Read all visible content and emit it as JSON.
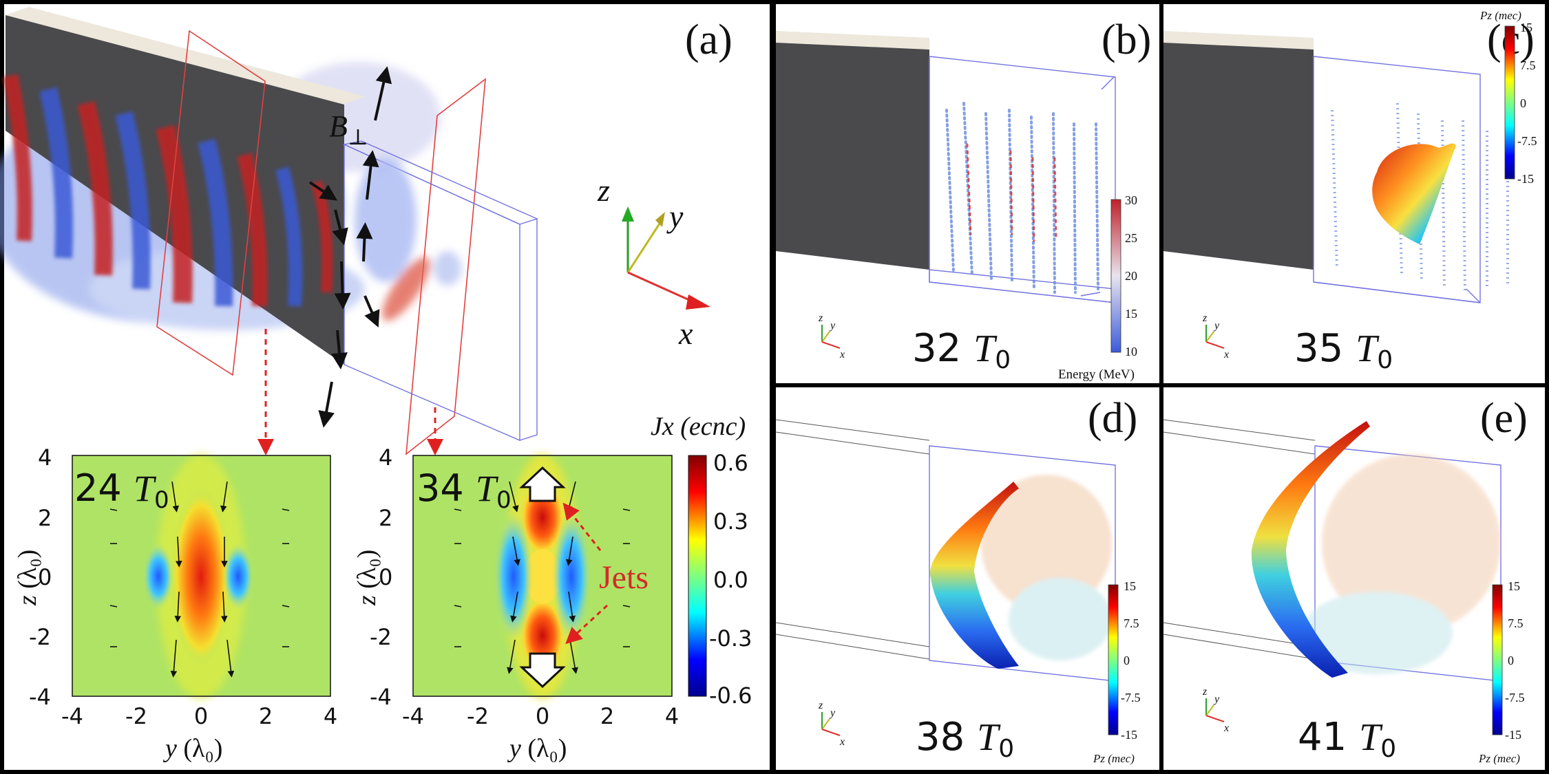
{
  "colors": {
    "red": "#cc2222",
    "blue": "#3355cc",
    "jets": "#d42a2a",
    "slab_dark": "#4a4a4d",
    "slab_top": "#ede7dc",
    "box": "#6f6fe0"
  },
  "panel_a": {
    "label": "(a)",
    "field_label": "B",
    "field_sub": "⊥",
    "axes3d": {
      "z": "z",
      "y": "y",
      "x": "x"
    },
    "maps": [
      {
        "time_value": "24",
        "time_unit": "T",
        "time_sub": "0"
      },
      {
        "time_value": "34",
        "time_unit": "T",
        "time_sub": "0"
      }
    ],
    "map_xticks": [
      "-4",
      "-2",
      "0",
      "2",
      "4"
    ],
    "map_yticks": [
      "4",
      "2",
      "0",
      "-2",
      "-4"
    ],
    "map_ylabel": "z",
    "map_ylabel_unit": "(λ₀)",
    "map_xlabel": "y",
    "map_xlabel_unit": "(λ₀)",
    "jets_label": "Jets",
    "colorbar_title": "Jx (ecnc)",
    "colorbar_ticks": [
      "0.6",
      "0.3",
      "0.0",
      "-0.3",
      "-0.6"
    ]
  },
  "panel_b": {
    "label": "(b)",
    "time_value": "32",
    "time_unit": "T",
    "time_sub": "0",
    "colorbar_ticks": [
      "30",
      "25",
      "20",
      "15",
      "10"
    ],
    "colorbar_title": "Energy (MeV)"
  },
  "panel_c": {
    "label": "(c)",
    "time_value": "35",
    "time_unit": "T",
    "time_sub": "0",
    "colorbar_title": "Pz (mec)",
    "colorbar_ticks": [
      "15",
      "7.5",
      "0",
      "-7.5",
      "-15"
    ]
  },
  "panel_d": {
    "label": "(d)",
    "time_value": "38",
    "time_unit": "T",
    "time_sub": "0",
    "colorbar_title": "Pz (mec)",
    "colorbar_ticks": [
      "15",
      "7.5",
      "0",
      "-7.5",
      "-15"
    ]
  },
  "panel_e": {
    "label": "(e)",
    "time_value": "41",
    "time_unit": "T",
    "time_sub": "0",
    "colorbar_title": "Pz (mec)",
    "colorbar_ticks": [
      "15",
      "7.5",
      "0",
      "-7.5",
      "-15"
    ]
  },
  "small_axes": {
    "z": "z",
    "y": "y",
    "x": "x"
  }
}
